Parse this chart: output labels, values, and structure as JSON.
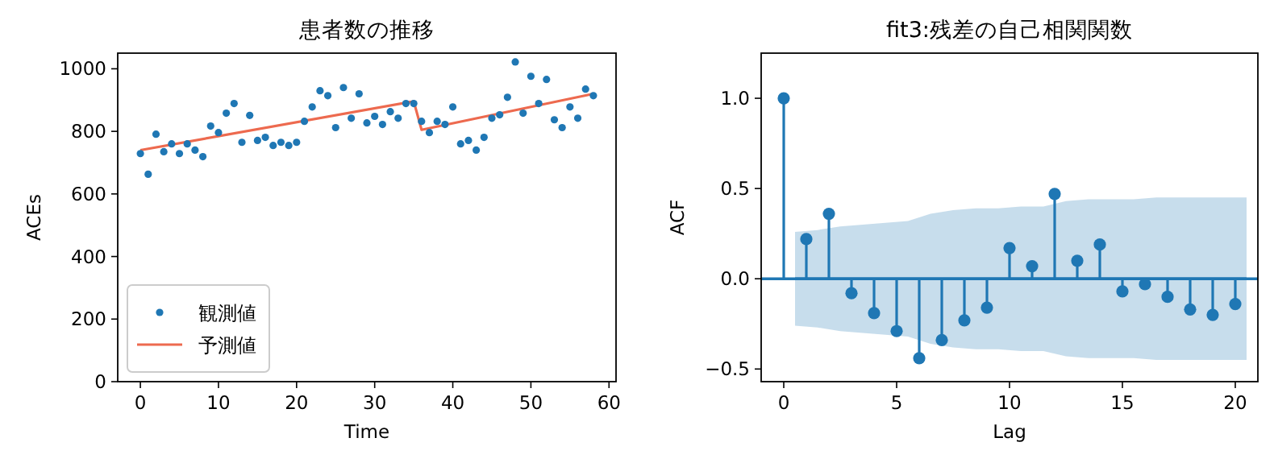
{
  "chart_data": [
    {
      "type": "scatter",
      "title": "患者数の推移",
      "xlabel": "Time",
      "ylabel": "ACEs",
      "xlim": [
        -2.9,
        60.9
      ],
      "ylim": [
        0,
        1050
      ],
      "xticks": [
        0,
        10,
        20,
        30,
        40,
        50,
        60
      ],
      "yticks": [
        0,
        200,
        400,
        600,
        800,
        1000
      ],
      "legend": "bottom left",
      "series": [
        {
          "name": "観測値",
          "marker": "circle",
          "color": "#1f77b4",
          "x": [
            0,
            1,
            2,
            3,
            4,
            5,
            6,
            7,
            8,
            9,
            10,
            11,
            12,
            13,
            14,
            15,
            16,
            17,
            18,
            19,
            20,
            21,
            22,
            23,
            24,
            25,
            26,
            27,
            28,
            29,
            30,
            31,
            32,
            33,
            34,
            35,
            36,
            37,
            38,
            39,
            40,
            41,
            42,
            43,
            44,
            45,
            46,
            47,
            48,
            49,
            50,
            51,
            52,
            53,
            54,
            55,
            56,
            57,
            58
          ],
          "values": [
            729,
            663,
            791,
            735,
            760,
            729,
            760,
            740,
            719,
            817,
            796,
            858,
            889,
            765,
            851,
            771,
            781,
            755,
            765,
            755,
            765,
            832,
            878,
            930,
            914,
            812,
            940,
            842,
            920,
            827,
            848,
            822,
            863,
            842,
            889,
            889,
            832,
            796,
            832,
            822,
            878,
            760,
            771,
            740,
            781,
            842,
            853,
            909,
            1022,
            858,
            976,
            889,
            966,
            837,
            812,
            878,
            842,
            935,
            914
          ]
        },
        {
          "name": "予測値",
          "type": "line",
          "marker": "none",
          "color": "#ed6a4f",
          "x": [
            0,
            35,
            36,
            58
          ],
          "values": [
            740,
            896,
            805,
            920
          ]
        }
      ]
    },
    {
      "type": "lollipop",
      "title": "fit3:残差の自己相関関数",
      "xlabel": "Lag",
      "ylabel": "ACF",
      "xlim": [
        -1,
        21
      ],
      "ylim": [
        -0.57,
        1.25
      ],
      "xticks": [
        0,
        5,
        10,
        15,
        20
      ],
      "yticks": [
        {
          "value": -0.5,
          "label": "−0.5"
        },
        {
          "value": 0,
          "label": "0.0"
        },
        0.5,
        {
          "value": 1,
          "label": "1.0"
        }
      ],
      "legend": false,
      "ref_lines": [
        {
          "axis": "y",
          "value": 0,
          "color": "#1f77b4"
        }
      ],
      "series": [
        {
          "type": "line",
          "marker": "none",
          "color": "#1f77b4",
          "x": [
            0.5,
            1.5,
            2.5,
            3.5,
            4.5,
            5.5,
            6.5,
            7.5,
            8.5,
            9.5,
            10.5,
            11.5,
            12.5,
            13.5,
            14.5,
            15.5,
            16.5,
            17.5,
            18.5,
            19.5,
            20.5
          ],
          "values": [
            0,
            0,
            0,
            0,
            0,
            0,
            0,
            0,
            0,
            0,
            0,
            0,
            0,
            0,
            0,
            0,
            0,
            0,
            0,
            0,
            0
          ],
          "lower": [
            -0.26,
            -0.27,
            -0.29,
            -0.3,
            -0.31,
            -0.32,
            -0.36,
            -0.38,
            -0.39,
            -0.39,
            -0.4,
            -0.4,
            -0.43,
            -0.44,
            -0.44,
            -0.44,
            -0.45,
            -0.45,
            -0.45,
            -0.45,
            -0.45
          ],
          "upper": [
            0.26,
            0.27,
            0.29,
            0.3,
            0.31,
            0.32,
            0.36,
            0.38,
            0.39,
            0.39,
            0.4,
            0.4,
            0.43,
            0.44,
            0.44,
            0.44,
            0.45,
            0.45,
            0.45,
            0.45,
            0.45
          ]
        },
        {
          "marker": "circle",
          "color": "#1f77b4",
          "x": [
            0,
            1,
            2,
            3,
            4,
            5,
            6,
            7,
            8,
            9,
            10,
            11,
            12,
            13,
            14,
            15,
            16,
            17,
            18,
            19,
            20
          ],
          "values": [
            1.0,
            0.22,
            0.36,
            -0.08,
            -0.19,
            -0.29,
            -0.44,
            -0.34,
            -0.23,
            -0.16,
            0.17,
            0.07,
            0.47,
            0.1,
            0.19,
            -0.07,
            -0.03,
            -0.1,
            -0.17,
            -0.2,
            -0.14
          ]
        }
      ]
    }
  ]
}
